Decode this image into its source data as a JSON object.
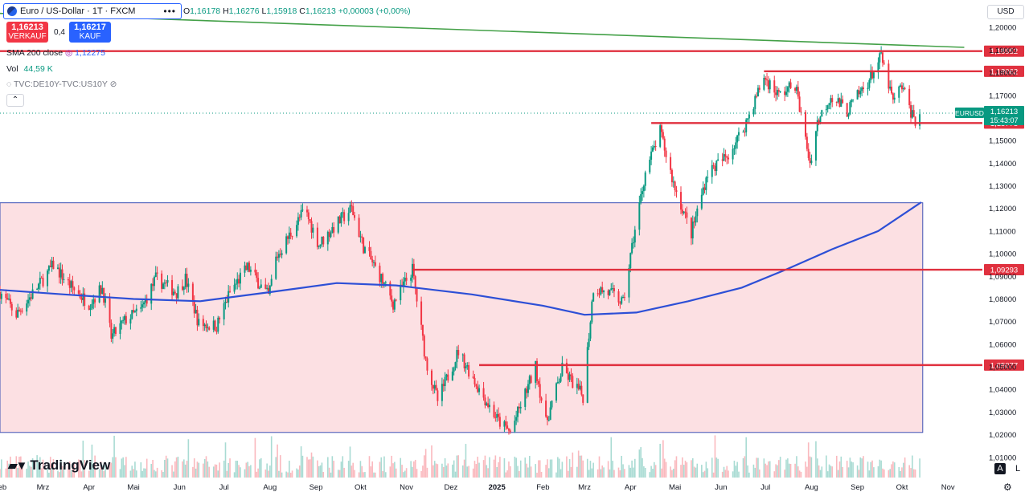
{
  "header": {
    "symbol_title": "Euro / US-Dollar · 1T · FXCM",
    "ohlc": {
      "o_label": "O",
      "o": "1,16178",
      "h_label": "H",
      "h": "1,16276",
      "l_label": "L",
      "l": "1,15918",
      "c_label": "C",
      "c": "1,16213",
      "change": "+0,00003 (+0,00%)"
    },
    "sell": {
      "price": "1,16213",
      "label": "VERKAUF"
    },
    "buy": {
      "price": "1,16217",
      "label": "KAUF"
    },
    "spread": "0,4",
    "indicators": {
      "sma_label": "SMA 200 close",
      "sma_value": "1,12275",
      "vol_label": "Vol",
      "vol_value": "44,59 K",
      "compare_label": "TVC:DE10Y-TVC:US10Y"
    },
    "collapse_icon": "chevron-up-icon",
    "currency": "USD",
    "brand": "TradingView",
    "bottom_right": {
      "auto": "A",
      "log": "L"
    }
  },
  "colors": {
    "up": "#089981",
    "down": "#f23645",
    "sma": "#2d4fd6",
    "level": "#e0313f",
    "trend": "#43a047",
    "zone_fill": "#fbd5da",
    "zone_stroke": "#3b4fb5"
  },
  "chart_data": {
    "type": "candlestick",
    "symbol": "EURUSD",
    "timeframe": "1T",
    "y_axis": {
      "min": 1.0,
      "max": 1.21,
      "ticks": [
        "1,20000",
        "1,19000",
        "1,18000",
        "1,17000",
        "1,16000",
        "1,15000",
        "1,14000",
        "1,13000",
        "1,12000",
        "1,11000",
        "1,10000",
        "1,09000",
        "1,08000",
        "1,07000",
        "1,06000",
        "1,05000",
        "1,04000",
        "1,03000",
        "1,02000",
        "1,01000"
      ],
      "tick_values": [
        1.2,
        1.19,
        1.18,
        1.17,
        1.16,
        1.15,
        1.14,
        1.13,
        1.12,
        1.11,
        1.1,
        1.09,
        1.08,
        1.07,
        1.06,
        1.05,
        1.04,
        1.03,
        1.02,
        1.01
      ]
    },
    "x_axis": {
      "start": "2024-02-01",
      "end": "2025-11-15",
      "labels": [
        {
          "text": "Feb",
          "date": "2024-02-01"
        },
        {
          "text": "Mrz",
          "date": "2024-03-01"
        },
        {
          "text": "Apr",
          "date": "2024-04-01"
        },
        {
          "text": "Mai",
          "date": "2024-05-01"
        },
        {
          "text": "Jun",
          "date": "2024-06-01"
        },
        {
          "text": "Jul",
          "date": "2024-07-01"
        },
        {
          "text": "Aug",
          "date": "2024-08-01"
        },
        {
          "text": "Sep",
          "date": "2024-09-01"
        },
        {
          "text": "Okt",
          "date": "2024-10-01"
        },
        {
          "text": "Nov",
          "date": "2024-11-01"
        },
        {
          "text": "Dez",
          "date": "2024-12-01"
        },
        {
          "text": "2025",
          "date": "2025-01-01",
          "bold": true
        },
        {
          "text": "Feb",
          "date": "2025-02-01"
        },
        {
          "text": "Mrz",
          "date": "2025-03-01"
        },
        {
          "text": "Apr",
          "date": "2025-04-01"
        },
        {
          "text": "Mai",
          "date": "2025-05-01"
        },
        {
          "text": "Jun",
          "date": "2025-06-01"
        },
        {
          "text": "Jul",
          "date": "2025-07-01"
        },
        {
          "text": "Aug",
          "date": "2025-08-01"
        },
        {
          "text": "Sep",
          "date": "2025-09-01"
        },
        {
          "text": "Okt",
          "date": "2025-10-01"
        },
        {
          "text": "Nov",
          "date": "2025-11-01"
        }
      ]
    },
    "price_path": [
      [
        "2024-02-01",
        1.083
      ],
      [
        "2024-02-12",
        1.073
      ],
      [
        "2024-02-26",
        1.085
      ],
      [
        "2024-03-08",
        1.095
      ],
      [
        "2024-03-19",
        1.086
      ],
      [
        "2024-04-01",
        1.078
      ],
      [
        "2024-04-10",
        1.085
      ],
      [
        "2024-04-16",
        1.063
      ],
      [
        "2024-04-26",
        1.071
      ],
      [
        "2024-05-06",
        1.075
      ],
      [
        "2024-05-16",
        1.089
      ],
      [
        "2024-05-30",
        1.083
      ],
      [
        "2024-06-05",
        1.089
      ],
      [
        "2024-06-14",
        1.069
      ],
      [
        "2024-06-26",
        1.068
      ],
      [
        "2024-07-05",
        1.083
      ],
      [
        "2024-07-17",
        1.094
      ],
      [
        "2024-07-31",
        1.081
      ],
      [
        "2024-08-05",
        1.098
      ],
      [
        "2024-08-23",
        1.118
      ],
      [
        "2024-08-26",
        1.117
      ],
      [
        "2024-09-03",
        1.104
      ],
      [
        "2024-09-12",
        1.111
      ],
      [
        "2024-09-25",
        1.12
      ],
      [
        "2024-10-03",
        1.103
      ],
      [
        "2024-10-15",
        1.089
      ],
      [
        "2024-10-23",
        1.078
      ],
      [
        "2024-11-05",
        1.093
      ],
      [
        "2024-11-14",
        1.053
      ],
      [
        "2024-11-22",
        1.035
      ],
      [
        "2024-12-06",
        1.057
      ],
      [
        "2024-12-20",
        1.04
      ],
      [
        "2025-01-02",
        1.026
      ],
      [
        "2025-01-10",
        1.021
      ],
      [
        "2025-01-27",
        1.05
      ],
      [
        "2025-02-03",
        1.025
      ],
      [
        "2025-02-14",
        1.049
      ],
      [
        "2025-02-28",
        1.037
      ],
      [
        "2025-03-07",
        1.085
      ],
      [
        "2025-03-20",
        1.082
      ],
      [
        "2025-03-27",
        1.078
      ],
      [
        "2025-04-03",
        1.107
      ],
      [
        "2025-04-11",
        1.136
      ],
      [
        "2025-04-21",
        1.154
      ],
      [
        "2025-04-30",
        1.131
      ],
      [
        "2025-05-12",
        1.109
      ],
      [
        "2025-05-23",
        1.136
      ],
      [
        "2025-06-05",
        1.143
      ],
      [
        "2025-06-16",
        1.155
      ],
      [
        "2025-06-30",
        1.178
      ],
      [
        "2025-07-10",
        1.17
      ],
      [
        "2025-07-21",
        1.175
      ],
      [
        "2025-07-31",
        1.14
      ],
      [
        "2025-08-05",
        1.158
      ],
      [
        "2025-08-14",
        1.17
      ],
      [
        "2025-08-25",
        1.163
      ],
      [
        "2025-09-08",
        1.176
      ],
      [
        "2025-09-17",
        1.187
      ],
      [
        "2025-09-25",
        1.167
      ],
      [
        "2025-10-01",
        1.174
      ],
      [
        "2025-10-07",
        1.163
      ],
      [
        "2025-10-10",
        1.159
      ],
      [
        "2025-10-14",
        1.162
      ]
    ],
    "sma200": {
      "name": "SMA 200 close",
      "points": [
        [
          "2024-02-01",
          1.084
        ],
        [
          "2024-03-15",
          1.082
        ],
        [
          "2024-05-01",
          1.08
        ],
        [
          "2024-06-15",
          1.079
        ],
        [
          "2024-08-01",
          1.083
        ],
        [
          "2024-09-15",
          1.087
        ],
        [
          "2024-10-25",
          1.086
        ],
        [
          "2024-12-15",
          1.082
        ],
        [
          "2025-02-01",
          1.077
        ],
        [
          "2025-03-01",
          1.073
        ],
        [
          "2025-04-05",
          1.074
        ],
        [
          "2025-05-10",
          1.079
        ],
        [
          "2025-06-15",
          1.085
        ],
        [
          "2025-07-15",
          1.093
        ],
        [
          "2025-08-15",
          1.102
        ],
        [
          "2025-09-15",
          1.11
        ],
        [
          "2025-10-14",
          1.12275
        ]
      ]
    },
    "horizontal_levels": [
      {
        "label": "1,18952",
        "value": 1.18952,
        "from": "2024-02-01"
      },
      {
        "label": "1,18062",
        "value": 1.18062,
        "from": "2025-06-30"
      },
      {
        "label": "1,15773",
        "value": 1.15773,
        "from": "2025-04-15"
      },
      {
        "label": "1,09293",
        "value": 1.09293,
        "from": "2024-11-05"
      },
      {
        "label": "1,05077",
        "value": 1.05077,
        "from": "2024-12-20"
      }
    ],
    "trend_line": {
      "from": [
        "2024-02-01",
        1.2062
      ],
      "to": [
        "2025-11-12",
        1.1912
      ]
    },
    "range_box": {
      "from": "2024-02-01",
      "to": "2025-10-15",
      "top": 1.1225,
      "bottom": 1.021
    },
    "last_price": {
      "symbol_label": "EURUSD",
      "label": "1,16213",
      "value": 1.16213,
      "countdown": "15:43:07"
    }
  }
}
